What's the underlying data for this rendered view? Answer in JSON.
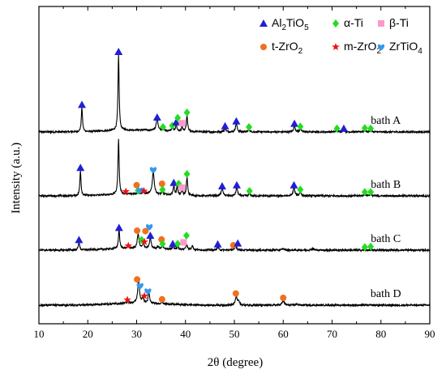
{
  "chart_data": {
    "type": "line",
    "xlabel": "2θ (degree)",
    "ylabel": "Intensity (a.u.)",
    "xlim": [
      10,
      90
    ],
    "x_ticks": [
      10,
      20,
      30,
      40,
      50,
      60,
      70,
      80,
      90
    ],
    "legend_position": "top-right",
    "legend": [
      {
        "phase": "Al2TiO5",
        "main": "Al",
        "sub1": "2",
        "mid": "TiO",
        "sub2": "5",
        "marker": "triangle",
        "color": "#1f1fd6"
      },
      {
        "phase": "α-Ti",
        "main": "α-Ti",
        "sub1": "",
        "mid": "",
        "sub2": "",
        "marker": "diamond",
        "color": "#22dd22"
      },
      {
        "phase": "β-Ti",
        "main": "β-Ti",
        "sub1": "",
        "mid": "",
        "sub2": "",
        "marker": "square",
        "color": "#ff99cc"
      },
      {
        "phase": "t-ZrO2",
        "main": "t-ZrO",
        "sub1": "2",
        "mid": "",
        "sub2": "",
        "marker": "circle",
        "color": "#f07020"
      },
      {
        "phase": "m-ZrO2",
        "main": "m-ZrO",
        "sub1": "2",
        "mid": "",
        "sub2": "",
        "marker": "star",
        "color": "#ee1111"
      },
      {
        "phase": "ZrTiO4",
        "main": "ZrTiO",
        "sub1": "4",
        "mid": "",
        "sub2": "",
        "marker": "heart",
        "color": "#3399ee"
      }
    ],
    "series": [
      {
        "name": "bath A",
        "peaks": [
          {
            "x": 18.8,
            "h": 0.5,
            "w": 0.28
          },
          {
            "x": 26.3,
            "h": 1.55,
            "w": 0.28
          },
          {
            "x": 34.2,
            "h": 0.24,
            "w": 0.45
          },
          {
            "x": 35.4,
            "h": 0.06,
            "w": 0.3
          },
          {
            "x": 37.3,
            "h": 0.08,
            "w": 0.3
          },
          {
            "x": 38.1,
            "h": 0.15,
            "w": 0.3
          },
          {
            "x": 39.3,
            "h": 0.1,
            "w": 0.3
          },
          {
            "x": 40.3,
            "h": 0.33,
            "w": 0.3
          },
          {
            "x": 48.1,
            "h": 0.07,
            "w": 0.4
          },
          {
            "x": 50.4,
            "h": 0.17,
            "w": 0.4
          },
          {
            "x": 53.0,
            "h": 0.05,
            "w": 0.4
          },
          {
            "x": 62.3,
            "h": 0.12,
            "w": 0.4
          },
          {
            "x": 63.5,
            "h": 0.06,
            "w": 0.4
          },
          {
            "x": 71.0,
            "h": 0.03,
            "w": 0.5
          },
          {
            "x": 72.4,
            "h": 0.04,
            "w": 0.5
          },
          {
            "x": 76.7,
            "h": 0.03,
            "w": 0.5
          },
          {
            "x": 77.9,
            "h": 0.03,
            "w": 0.5
          }
        ],
        "markers": [
          {
            "x": 18.8,
            "y": 0.56,
            "phase": "Al2TiO5"
          },
          {
            "x": 26.3,
            "y": 1.65,
            "phase": "Al2TiO5"
          },
          {
            "x": 34.2,
            "y": 0.3,
            "phase": "Al2TiO5"
          },
          {
            "x": 35.4,
            "y": 0.1,
            "phase": "α-Ti"
          },
          {
            "x": 37.3,
            "y": 0.13,
            "phase": "α-Ti"
          },
          {
            "x": 38.1,
            "y": 0.2,
            "phase": "Al2TiO5"
          },
          {
            "x": 38.4,
            "y": 0.29,
            "phase": "α-Ti"
          },
          {
            "x": 39.3,
            "y": 0.18,
            "phase": "β-Ti"
          },
          {
            "x": 40.3,
            "y": 0.4,
            "phase": "α-Ti"
          },
          {
            "x": 48.1,
            "y": 0.12,
            "phase": "Al2TiO5"
          },
          {
            "x": 50.4,
            "y": 0.22,
            "phase": "Al2TiO5"
          },
          {
            "x": 53.0,
            "y": 0.1,
            "phase": "α-Ti"
          },
          {
            "x": 62.3,
            "y": 0.17,
            "phase": "Al2TiO5"
          },
          {
            "x": 63.5,
            "y": 0.11,
            "phase": "α-Ti"
          },
          {
            "x": 71.0,
            "y": 0.07,
            "phase": "α-Ti"
          },
          {
            "x": 72.4,
            "y": 0.07,
            "phase": "Al2TiO5"
          },
          {
            "x": 76.7,
            "y": 0.08,
            "phase": "α-Ti"
          },
          {
            "x": 77.9,
            "y": 0.07,
            "phase": "α-Ti"
          }
        ]
      },
      {
        "name": "bath B",
        "peaks": [
          {
            "x": 18.5,
            "h": 0.52,
            "w": 0.28
          },
          {
            "x": 26.3,
            "h": 1.15,
            "w": 0.28
          },
          {
            "x": 30.3,
            "h": 0.06,
            "w": 0.3
          },
          {
            "x": 31.3,
            "h": 0.06,
            "w": 0.3
          },
          {
            "x": 33.4,
            "h": 0.48,
            "w": 0.45
          },
          {
            "x": 35.3,
            "h": 0.08,
            "w": 0.3
          },
          {
            "x": 37.6,
            "h": 0.2,
            "w": 0.3
          },
          {
            "x": 38.3,
            "h": 0.18,
            "w": 0.3
          },
          {
            "x": 39.3,
            "h": 0.1,
            "w": 0.3
          },
          {
            "x": 40.3,
            "h": 0.38,
            "w": 0.3
          },
          {
            "x": 47.5,
            "h": 0.14,
            "w": 0.45
          },
          {
            "x": 50.5,
            "h": 0.17,
            "w": 0.4
          },
          {
            "x": 53.1,
            "h": 0.05,
            "w": 0.4
          },
          {
            "x": 62.2,
            "h": 0.17,
            "w": 0.4
          },
          {
            "x": 63.5,
            "h": 0.08,
            "w": 0.4
          },
          {
            "x": 76.7,
            "h": 0.03,
            "w": 0.5
          },
          {
            "x": 77.9,
            "h": 0.03,
            "w": 0.5
          }
        ],
        "markers": [
          {
            "x": 18.5,
            "y": 0.58,
            "phase": "Al2TiO5"
          },
          {
            "x": 27.8,
            "y": 0.09,
            "phase": "m-ZrO2"
          },
          {
            "x": 30.0,
            "y": 0.22,
            "phase": "t-ZrO2"
          },
          {
            "x": 30.3,
            "y": 0.11,
            "phase": "α-Ti"
          },
          {
            "x": 30.7,
            "y": 0.12,
            "phase": "ZrTiO4"
          },
          {
            "x": 31.5,
            "y": 0.1,
            "phase": "m-ZrO2"
          },
          {
            "x": 33.4,
            "y": 0.54,
            "phase": "ZrTiO4"
          },
          {
            "x": 35.2,
            "y": 0.25,
            "phase": "t-ZrO2"
          },
          {
            "x": 35.3,
            "y": 0.13,
            "phase": "α-Ti"
          },
          {
            "x": 37.6,
            "y": 0.27,
            "phase": "Al2TiO5"
          },
          {
            "x": 38.6,
            "y": 0.25,
            "phase": "α-Ti"
          },
          {
            "x": 39.3,
            "y": 0.17,
            "phase": "β-Ti"
          },
          {
            "x": 40.3,
            "y": 0.45,
            "phase": "α-Ti"
          },
          {
            "x": 47.5,
            "y": 0.2,
            "phase": "Al2TiO5"
          },
          {
            "x": 50.5,
            "y": 0.22,
            "phase": "Al2TiO5"
          },
          {
            "x": 53.1,
            "y": 0.1,
            "phase": "α-Ti"
          },
          {
            "x": 62.2,
            "y": 0.22,
            "phase": "Al2TiO5"
          },
          {
            "x": 63.5,
            "y": 0.13,
            "phase": "α-Ti"
          },
          {
            "x": 76.7,
            "y": 0.08,
            "phase": "α-Ti"
          },
          {
            "x": 77.9,
            "y": 0.08,
            "phase": "α-Ti"
          }
        ]
      },
      {
        "name": "bath C",
        "peaks": [
          {
            "x": 18.2,
            "h": 0.16,
            "w": 0.3
          },
          {
            "x": 26.4,
            "h": 0.4,
            "w": 0.3
          },
          {
            "x": 28.2,
            "h": 0.04,
            "w": 0.3
          },
          {
            "x": 30.3,
            "h": 0.3,
            "w": 0.4
          },
          {
            "x": 31.4,
            "h": 0.12,
            "w": 0.3
          },
          {
            "x": 32.8,
            "h": 0.24,
            "w": 0.35
          },
          {
            "x": 34.4,
            "h": 0.05,
            "w": 0.3
          },
          {
            "x": 35.3,
            "h": 0.1,
            "w": 0.3
          },
          {
            "x": 37.4,
            "h": 0.07,
            "w": 0.3
          },
          {
            "x": 38.4,
            "h": 0.08,
            "w": 0.3
          },
          {
            "x": 40.2,
            "h": 0.12,
            "w": 0.35
          },
          {
            "x": 41.4,
            "h": 0.09,
            "w": 0.35
          },
          {
            "x": 46.6,
            "h": 0.06,
            "w": 0.4
          },
          {
            "x": 50.3,
            "h": 0.08,
            "w": 0.45
          },
          {
            "x": 60.0,
            "h": 0.03,
            "w": 0.5
          },
          {
            "x": 66.0,
            "h": 0.03,
            "w": 0.6
          }
        ],
        "markers": [
          {
            "x": 18.2,
            "y": 0.21,
            "phase": "Al2TiO5"
          },
          {
            "x": 26.4,
            "y": 0.46,
            "phase": "Al2TiO5"
          },
          {
            "x": 28.3,
            "y": 0.09,
            "phase": "m-ZrO2"
          },
          {
            "x": 30.1,
            "y": 0.4,
            "phase": "t-ZrO2"
          },
          {
            "x": 31.0,
            "y": 0.21,
            "phase": "α-Ti"
          },
          {
            "x": 31.6,
            "y": 0.17,
            "phase": "m-ZrO2"
          },
          {
            "x": 31.8,
            "y": 0.39,
            "phase": "t-ZrO2"
          },
          {
            "x": 32.6,
            "y": 0.48,
            "phase": "ZrTiO4"
          },
          {
            "x": 32.8,
            "y": 0.3,
            "phase": "Al2TiO5"
          },
          {
            "x": 35.1,
            "y": 0.22,
            "phase": "t-ZrO2"
          },
          {
            "x": 35.3,
            "y": 0.13,
            "phase": "α-Ti"
          },
          {
            "x": 37.4,
            "y": 0.13,
            "phase": "Al2TiO5"
          },
          {
            "x": 38.4,
            "y": 0.13,
            "phase": "α-Ti"
          },
          {
            "x": 39.6,
            "y": 0.16,
            "phase": "β-Ti"
          },
          {
            "x": 40.2,
            "y": 0.3,
            "phase": "α-Ti"
          },
          {
            "x": 46.6,
            "y": 0.12,
            "phase": "Al2TiO5"
          },
          {
            "x": 49.8,
            "y": 0.1,
            "phase": "t-ZrO2"
          },
          {
            "x": 50.7,
            "y": 0.14,
            "phase": "Al2TiO5"
          },
          {
            "x": 76.7,
            "y": 0.06,
            "phase": "α-Ti"
          },
          {
            "x": 77.9,
            "y": 0.07,
            "phase": "α-Ti"
          }
        ]
      },
      {
        "name": "bath D",
        "peaks": [
          {
            "x": 28.2,
            "h": 0.05,
            "w": 0.3
          },
          {
            "x": 30.4,
            "h": 0.46,
            "w": 0.45
          },
          {
            "x": 31.3,
            "h": 0.12,
            "w": 0.35
          },
          {
            "x": 32.5,
            "h": 0.22,
            "w": 0.35
          },
          {
            "x": 35.2,
            "h": 0.05,
            "w": 0.35
          },
          {
            "x": 50.4,
            "h": 0.18,
            "w": 0.45
          },
          {
            "x": 50.9,
            "h": 0.07,
            "w": 0.35
          },
          {
            "x": 60.0,
            "h": 0.09,
            "w": 0.5
          },
          {
            "x": 62.8,
            "h": 0.02,
            "w": 0.6
          }
        ],
        "markers": [
          {
            "x": 28.1,
            "y": 0.11,
            "phase": "m-ZrO2"
          },
          {
            "x": 30.1,
            "y": 0.53,
            "phase": "t-ZrO2"
          },
          {
            "x": 30.7,
            "y": 0.4,
            "phase": "ZrTiO4"
          },
          {
            "x": 31.6,
            "y": 0.19,
            "phase": "m-ZrO2"
          },
          {
            "x": 32.3,
            "y": 0.29,
            "phase": "ZrTiO4"
          },
          {
            "x": 35.2,
            "y": 0.12,
            "phase": "t-ZrO2"
          },
          {
            "x": 50.3,
            "y": 0.24,
            "phase": "t-ZrO2"
          },
          {
            "x": 60.0,
            "y": 0.15,
            "phase": "t-ZrO2"
          }
        ]
      }
    ]
  }
}
